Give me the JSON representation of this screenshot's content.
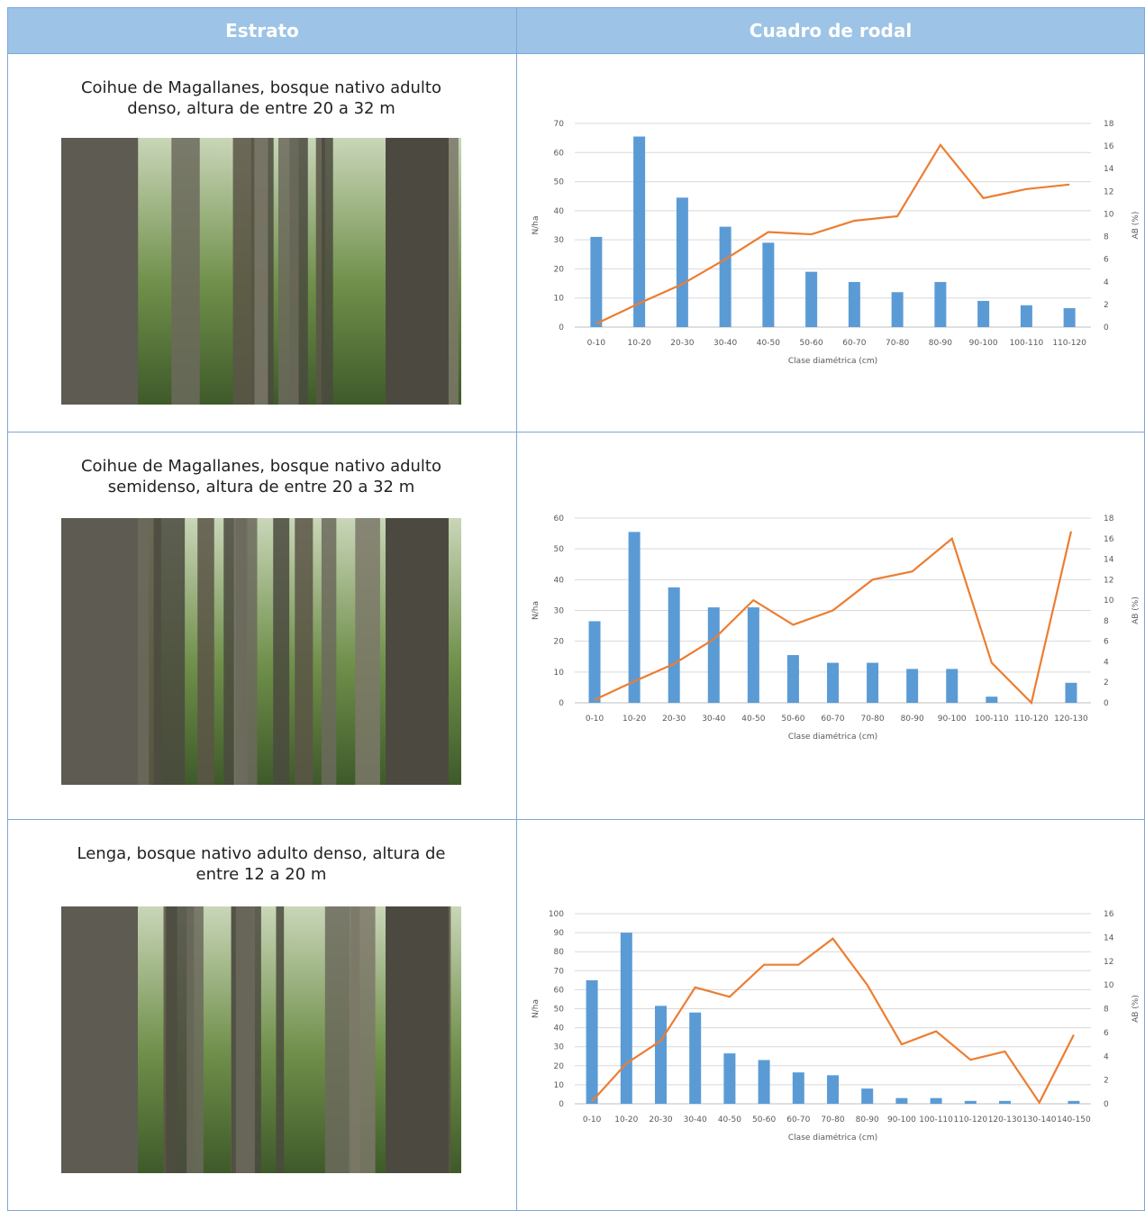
{
  "table": {
    "header": [
      "Estrato",
      "Cuadro de rodal"
    ],
    "rows": [
      {
        "text": "Coihue de Magallanes, bosque nativo adulto denso, altura de entre 20 a 32 m",
        "chart": {
          "type": "bar-line",
          "categories": [
            "0-10",
            "10-20",
            "20-30",
            "30-40",
            "40-50",
            "50-60",
            "60-70",
            "70-80",
            "80-90",
            "90-100",
            "100-110",
            "110-120"
          ],
          "series": [
            {
              "color": "#5b9bd5",
              "values": [
                31,
                65.5,
                44.5,
                34.5,
                29,
                19,
                15.5,
                12,
                15.5,
                9,
                7.5,
                6.5
              ]
            },
            {
              "color": "#ed7d31",
              "axis": "y2",
              "values": [
                0.3,
                2.1,
                3.8,
                6,
                8.4,
                8.2,
                9.4,
                9.8,
                16.1,
                11.4,
                12.2,
                12.6
              ]
            }
          ],
          "ylabel": "N/ha",
          "y2label": "AB (%)",
          "xlabel": "Clase diamétrica (cm)",
          "ylim": [
            0,
            70
          ],
          "yticks": [
            0,
            10,
            20,
            30,
            40,
            50,
            60,
            70
          ],
          "y2lim": [
            0,
            18
          ],
          "y2ticks": [
            0,
            2,
            4,
            6,
            8,
            10,
            12,
            14,
            16,
            18
          ],
          "grid": true
        }
      },
      {
        "text": "Coihue de Magallanes, bosque nativo adulto semidenso, altura de entre 20 a 32 m",
        "chart": {
          "type": "bar-line",
          "categories": [
            "0-10",
            "10-20",
            "20-30",
            "30-40",
            "40-50",
            "50-60",
            "60-70",
            "70-80",
            "80-90",
            "90-100",
            "100-110",
            "110-120",
            "120-130"
          ],
          "series": [
            {
              "color": "#5b9bd5",
              "values": [
                26.5,
                55.5,
                37.5,
                31,
                31,
                15.5,
                13,
                13,
                11,
                11,
                2,
                0,
                6.5
              ]
            },
            {
              "color": "#ed7d31",
              "axis": "y2",
              "values": [
                0.3,
                2.1,
                3.8,
                6.2,
                10,
                7.6,
                9,
                12,
                12.8,
                16,
                3.9,
                0,
                16.7
              ]
            }
          ],
          "ylabel": "N/ha",
          "y2label": "AB (%)",
          "xlabel": "Clase diamétrica (cm)",
          "ylim": [
            0,
            60
          ],
          "yticks": [
            0,
            10,
            20,
            30,
            40,
            50,
            60
          ],
          "y2lim": [
            0,
            18
          ],
          "y2ticks": [
            0,
            2,
            4,
            6,
            8,
            10,
            12,
            14,
            16,
            18
          ],
          "grid": true
        }
      },
      {
        "text": "Lenga, bosque nativo adulto denso, altura de entre 12 a 20 m",
        "chart": {
          "type": "bar-line",
          "categories": [
            "0-10",
            "10-20",
            "20-30",
            "30-40",
            "40-50",
            "50-60",
            "60-70",
            "70-80",
            "80-90",
            "90-100",
            "100-110",
            "110-120",
            "120-130",
            "130-140",
            "140-150"
          ],
          "series": [
            {
              "color": "#5b9bd5",
              "values": [
                65,
                90,
                51.5,
                48,
                26.5,
                23,
                16.5,
                15,
                8,
                3,
                3,
                1.5,
                1.5,
                0,
                1.5
              ]
            },
            {
              "color": "#ed7d31",
              "axis": "y2",
              "values": [
                0.2,
                3.4,
                5.3,
                9.8,
                9,
                11.7,
                11.7,
                13.9,
                10,
                5,
                6.1,
                3.7,
                4.4,
                0.1,
                5.8
              ]
            }
          ],
          "ylabel": "N/ha",
          "y2label": "AB (%)",
          "xlabel": "Clase diamétrica (cm)",
          "ylim": [
            0,
            100
          ],
          "yticks": [
            0,
            10,
            20,
            30,
            40,
            50,
            60,
            70,
            80,
            90,
            100
          ],
          "y2lim": [
            0,
            16
          ],
          "y2ticks": [
            0,
            2,
            4,
            6,
            8,
            10,
            12,
            14,
            16
          ],
          "grid": true
        }
      }
    ]
  }
}
